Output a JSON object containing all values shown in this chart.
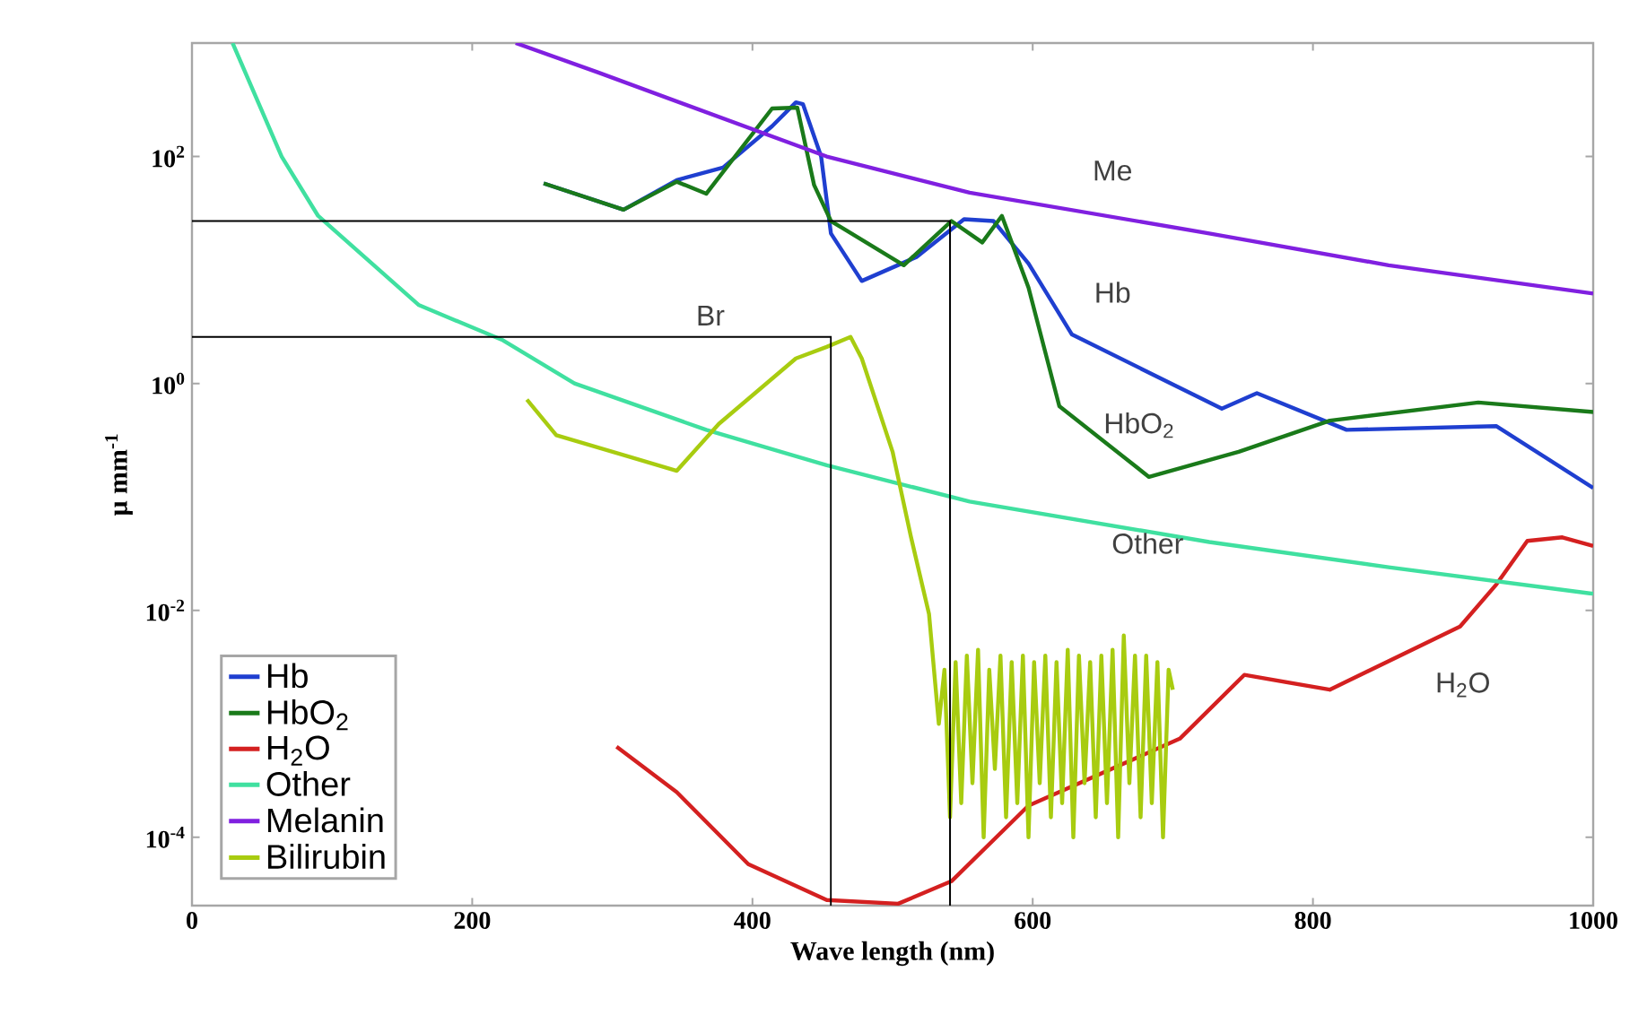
{
  "chart_data": {
    "type": "line",
    "xlabel": "Wave length (nm)",
    "ylabel": "μ mm$^{-1}$",
    "log": "y",
    "xlim": [
      0,
      1000
    ],
    "ylim": [
      2.5e-05,
      1000
    ],
    "xticks": [
      0,
      200,
      400,
      600,
      800,
      1000
    ],
    "yticks": [
      {
        "value": 0.0001,
        "label": "10$^{-4}$"
      },
      {
        "value": 0.01,
        "label": "10$^{-2}$"
      },
      {
        "value": 1,
        "label": "10$^{0}$"
      },
      {
        "value": 100,
        "label": "10$^{2}$"
      }
    ],
    "legend": "bottom left",
    "marker": "none",
    "line_style": "solid",
    "series": [
      {
        "name": "Hb",
        "color": "#1f3fd0",
        "x": [
          251,
          308,
          346,
          379,
          414,
          431,
          436,
          449,
          456,
          478,
          517,
          551,
          572,
          597,
          628,
          735,
          760,
          824,
          931,
          1000
        ],
        "values": [
          58,
          34,
          62,
          80,
          185,
          300,
          290,
          100,
          21,
          8,
          13,
          28,
          27,
          11.4,
          2.7,
          0.6,
          0.82,
          0.39,
          0.42,
          0.12
        ]
      },
      {
        "name": "HbO$_{2}$",
        "color": "#1a7a1a",
        "x": [
          251,
          308,
          346,
          367,
          414,
          432,
          444,
          456,
          508,
          542,
          564,
          578,
          597,
          619,
          683,
          747,
          812,
          918,
          1000
        ],
        "values": [
          58,
          34,
          60,
          47,
          265,
          270,
          56,
          27,
          11,
          27,
          17.5,
          30,
          7,
          0.63,
          0.15,
          0.25,
          0.47,
          0.68,
          0.56
        ]
      },
      {
        "name": "H$_{2}$O",
        "color": "#d42020",
        "x": [
          303,
          346,
          397,
          453,
          504,
          542,
          597,
          705,
          751,
          812,
          905,
          931,
          953,
          978,
          1000
        ],
        "values": [
          0.00063,
          0.00025,
          5.8e-05,
          2.8e-05,
          2.6e-05,
          4.1e-05,
          0.00019,
          0.00074,
          0.0027,
          0.002,
          0.0072,
          0.017,
          0.041,
          0.044,
          0.037
        ]
      },
      {
        "name": "Other",
        "color": "#40e0a0",
        "x": [
          29,
          64,
          90,
          162,
          222,
          273,
          367,
          453,
          555,
          726,
          854,
          1000
        ],
        "values": [
          1000,
          100,
          30,
          4.9,
          2.4,
          1.0,
          0.39,
          0.19,
          0.091,
          0.04,
          0.024,
          0.014
        ]
      },
      {
        "name": "Melanin",
        "color": "#8020e0",
        "x": [
          231,
          290,
          453,
          555,
          726,
          854,
          1000
        ],
        "values": [
          1000,
          550,
          100,
          48,
          21,
          11,
          6.2
        ]
      },
      {
        "name": "Bilirubin",
        "color": "#a8cc10",
        "x": [
          239,
          260,
          346,
          376,
          431,
          453,
          470,
          478,
          500,
          513,
          526,
          533,
          537,
          541,
          545,
          549,
          553,
          557,
          561,
          565,
          569,
          573,
          577,
          581,
          585,
          589,
          593,
          597,
          601,
          605,
          609,
          613,
          617,
          621,
          625,
          629,
          633,
          637,
          641,
          645,
          649,
          653,
          657,
          661,
          665,
          669,
          673,
          677,
          681,
          685,
          689,
          693,
          697,
          700
        ],
        "values": [
          0.72,
          0.35,
          0.17,
          0.44,
          1.66,
          2.1,
          2.57,
          1.66,
          0.25,
          0.045,
          0.0093,
          0.001,
          0.003,
          0.00015,
          0.0035,
          0.0002,
          0.004,
          0.0003,
          0.0045,
          0.0001,
          0.003,
          0.0004,
          0.004,
          0.00015,
          0.0035,
          0.0002,
          0.004,
          0.0001,
          0.0035,
          0.0003,
          0.004,
          0.00015,
          0.0035,
          0.0002,
          0.0045,
          0.0001,
          0.004,
          0.0003,
          0.0035,
          0.00015,
          0.004,
          0.0002,
          0.0045,
          0.0001,
          0.006,
          0.0003,
          0.004,
          0.00015,
          0.004,
          0.0002,
          0.0035,
          0.0001,
          0.003,
          0.002
        ]
      },
      {
        "type": "line",
        "color": "#000000",
        "x": [
          0,
          541,
          541
        ],
        "values": [
          27,
          27,
          2.5e-05
        ]
      },
      {
        "type": "line",
        "color": "#000000",
        "x": [
          0,
          456,
          456
        ],
        "values": [
          2.57,
          2.57,
          2.5e-05
        ]
      }
    ],
    "annotations": [
      "Me",
      "Hb",
      "HbO$_{2}$",
      "Other",
      "H$_{2}$O",
      "Br"
    ]
  }
}
